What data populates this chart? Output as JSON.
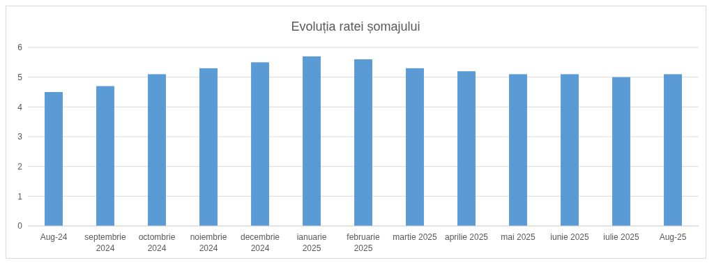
{
  "chart_data": {
    "type": "bar",
    "title": "Evoluția ratei șomajului",
    "categories": [
      "Aug-24",
      "septembrie 2024",
      "octombrie 2024",
      "noiembrie 2024",
      "decembrie 2024",
      "ianuarie 2025",
      "februarie 2025",
      "martie 2025",
      "aprilie 2025",
      "mai 2025",
      "iunie 2025",
      "iulie 2025",
      "Aug-25"
    ],
    "values": [
      4.5,
      4.7,
      5.1,
      5.3,
      5.5,
      5.7,
      5.6,
      5.3,
      5.2,
      5.1,
      5.1,
      5.0,
      5.1
    ],
    "color": "#5b9bd5",
    "ylim": [
      0,
      6
    ],
    "yticks": [
      0,
      1,
      2,
      3,
      4,
      5,
      6
    ],
    "grid": "y"
  }
}
